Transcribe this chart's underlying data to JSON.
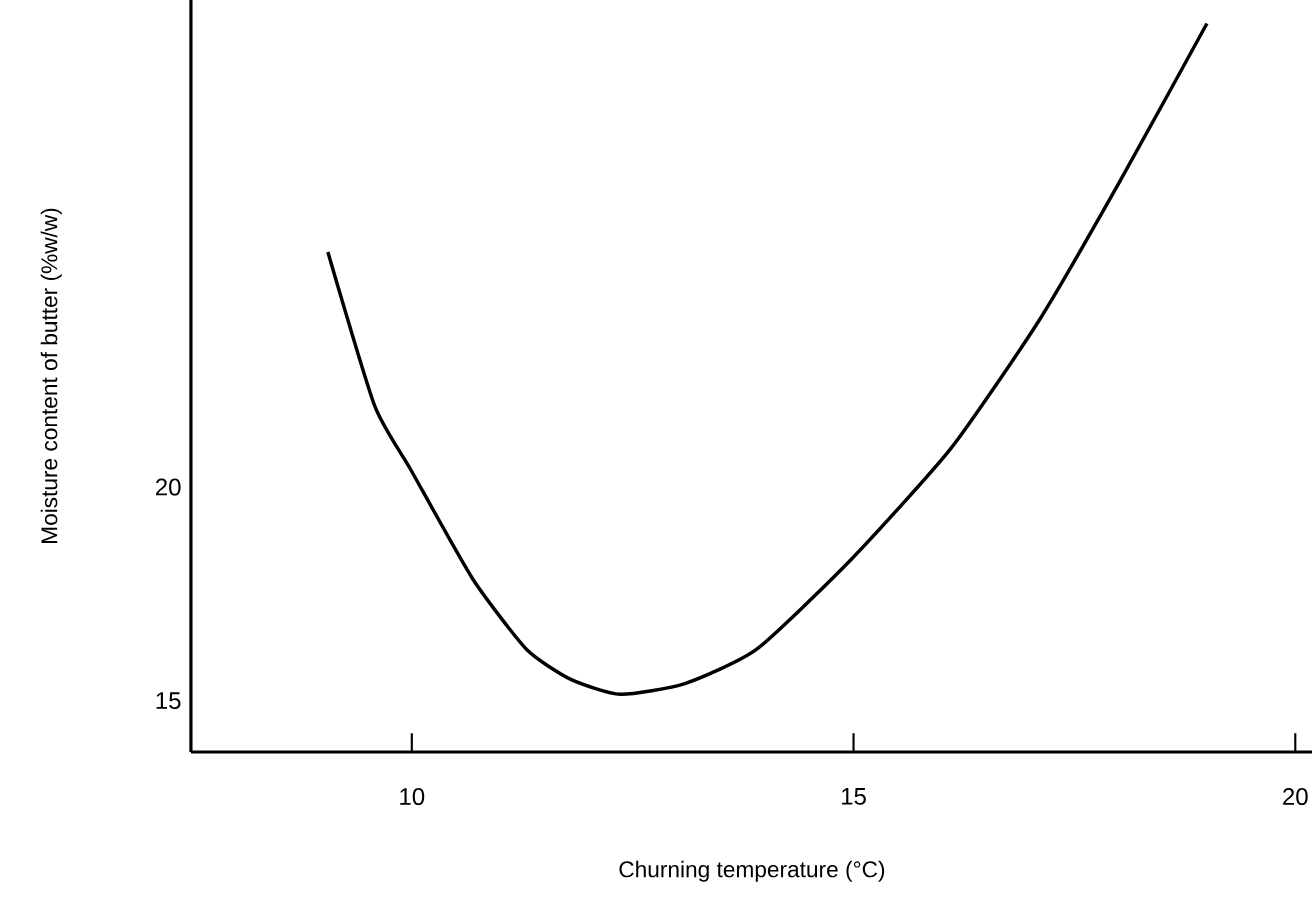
{
  "chart_data": {
    "type": "line",
    "xlabel": "Churning temperature (°C)",
    "ylabel": "Moisture content of butter (%w/w)",
    "x": [
      9.05,
      9.58,
      9.99,
      10.69,
      11.3,
      11.8,
      12.36,
      13.09,
      13.9,
      14.97,
      16.1,
      17.1,
      18.0,
      19.0
    ],
    "series": [
      {
        "color": "#000000",
        "values": [
          25.5,
          21.9,
          20.4,
          17.85,
          16.2,
          15.5,
          15.15,
          15.4,
          16.2,
          18.3,
          20.9,
          23.9,
          27.1,
          30.85
        ]
      }
    ],
    "xlim": [
      7.5,
      20.2
    ],
    "ylim": [
      13.8,
      31.4
    ],
    "xticks": [
      10,
      15,
      20
    ],
    "yticks": [
      15,
      20
    ],
    "grid": false,
    "marker": "none",
    "line_style": "solid"
  }
}
